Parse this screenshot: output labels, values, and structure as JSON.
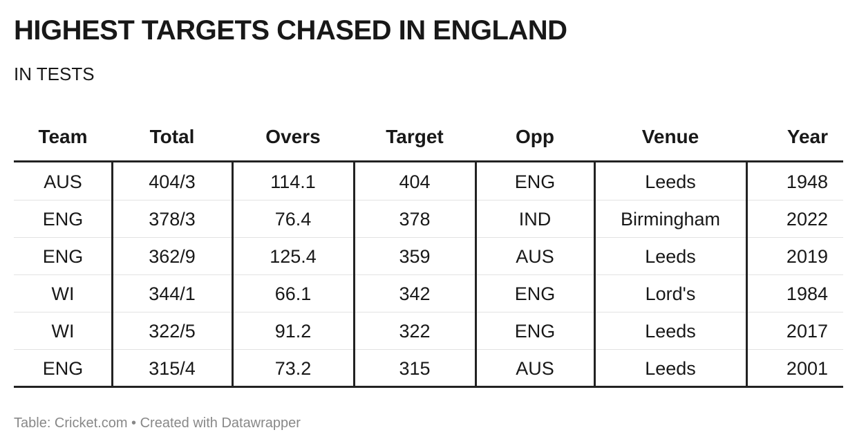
{
  "header": {
    "title": "HIGHEST TARGETS CHASED IN ENGLAND",
    "subtitle": "IN TESTS"
  },
  "table": {
    "columns": [
      "Team",
      "Total",
      "Overs",
      "Target",
      "Opp",
      "Venue",
      "Year"
    ],
    "rows": [
      [
        "AUS",
        "404/3",
        114.1,
        404,
        "ENG",
        "Leeds",
        1948
      ],
      [
        "ENG",
        "378/3",
        76.4,
        378,
        "IND",
        "Birmingham",
        2022
      ],
      [
        "ENG",
        "362/9",
        125.4,
        359,
        "AUS",
        "Leeds",
        2019
      ],
      [
        "WI",
        "344/1",
        66.1,
        342,
        "ENG",
        "Lord's",
        1984
      ],
      [
        "WI",
        "322/5",
        91.2,
        322,
        "ENG",
        "Leeds",
        2017
      ],
      [
        "ENG",
        "315/4",
        73.2,
        315,
        "AUS",
        "Leeds",
        2001
      ]
    ]
  },
  "footer": "Table: Cricket.com • Created with Datawrapper"
}
